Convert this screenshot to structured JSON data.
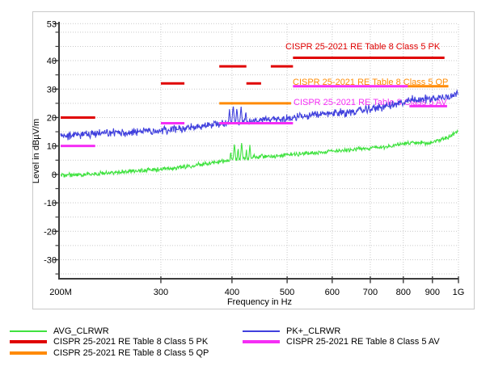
{
  "chart_data": {
    "type": "line",
    "title": "",
    "xlabel": "Frequency in Hz",
    "ylabel": "Level in dBµV/m",
    "x_scale": "log",
    "xlim_mhz": [
      200,
      1000
    ],
    "ylim": [
      -37,
      53
    ],
    "grid": "dotted",
    "x_ticks": [
      {
        "mhz": 200,
        "label": "200M"
      },
      {
        "mhz": 300,
        "label": "300"
      },
      {
        "mhz": 400,
        "label": "400"
      },
      {
        "mhz": 500,
        "label": "500"
      },
      {
        "mhz": 600,
        "label": "600"
      },
      {
        "mhz": 700,
        "label": "700"
      },
      {
        "mhz": 800,
        "label": "800"
      },
      {
        "mhz": 900,
        "label": "900"
      },
      {
        "mhz": 1000,
        "label": "1G"
      }
    ],
    "y_ticks": [
      53,
      40,
      30,
      20,
      10,
      0,
      -10,
      -20,
      -30
    ],
    "series": [
      {
        "name": "AVG_CLRWR",
        "color": "#3fe23f",
        "noise_db": 0.7,
        "anchors_mhz_db": [
          [
            200,
            -0.4
          ],
          [
            230,
            0.2
          ],
          [
            260,
            1.0
          ],
          [
            300,
            1.8
          ],
          [
            340,
            3.0
          ],
          [
            380,
            4.5
          ],
          [
            420,
            5.5
          ],
          [
            460,
            6.3
          ],
          [
            512,
            7.0
          ],
          [
            560,
            7.6
          ],
          [
            600,
            8.2
          ],
          [
            650,
            8.8
          ],
          [
            700,
            9.3
          ],
          [
            750,
            9.8
          ],
          [
            800,
            10.8
          ],
          [
            840,
            11.0
          ],
          [
            880,
            10.8
          ],
          [
            920,
            12.0
          ],
          [
            960,
            13.0
          ],
          [
            1000,
            15.3
          ]
        ],
        "spikes_mhz_db": [
          [
            398,
            8.5
          ],
          [
            404,
            11.0
          ],
          [
            410,
            9.5
          ],
          [
            416,
            11.3
          ],
          [
            424,
            9.0
          ],
          [
            430,
            10.4
          ],
          [
            438,
            7.8
          ],
          [
            452,
            8.0
          ],
          [
            860,
            12.2
          ]
        ]
      },
      {
        "name": "PK+_CLRWR",
        "color": "#4040dd",
        "noise_db": 1.4,
        "anchors_mhz_db": [
          [
            200,
            13.5
          ],
          [
            230,
            14.2
          ],
          [
            260,
            14.8
          ],
          [
            300,
            15.5
          ],
          [
            340,
            16.5
          ],
          [
            380,
            17.8
          ],
          [
            420,
            18.5
          ],
          [
            460,
            19.0
          ],
          [
            512,
            20.0
          ],
          [
            560,
            20.8
          ],
          [
            600,
            21.5
          ],
          [
            650,
            22.0
          ],
          [
            700,
            23.0
          ],
          [
            750,
            24.0
          ],
          [
            800,
            25.2
          ],
          [
            840,
            26.3
          ],
          [
            880,
            26.6
          ],
          [
            920,
            26.8
          ],
          [
            960,
            27.5
          ],
          [
            1000,
            28.5
          ]
        ],
        "spikes_mhz_db": [
          [
            396,
            23.0
          ],
          [
            402,
            24.5
          ],
          [
            408,
            23.5
          ],
          [
            415,
            24.0
          ],
          [
            423,
            22.5
          ],
          [
            830,
            28.0
          ]
        ]
      }
    ],
    "limits": [
      {
        "name": "CISPR 25-2021 RE Table 8 Class 5 PK",
        "color": "#e00000",
        "segments_mhz_db": [
          [
            200,
            230,
            20
          ],
          [
            300,
            330,
            32
          ],
          [
            380,
            424,
            38
          ],
          [
            424,
            450,
            32
          ],
          [
            468,
            512,
            38
          ],
          [
            512,
            945,
            41
          ]
        ]
      },
      {
        "name": "CISPR 25-2021 RE Table 8 Class 5 QP",
        "color": "#ff8a00",
        "segments_mhz_db": [
          [
            380,
            508,
            25
          ],
          [
            815,
            960,
            31
          ]
        ]
      },
      {
        "name": "CISPR 25-2021 RE Table 8 Class 5 AV",
        "color": "#f52ef5",
        "segments_mhz_db": [
          [
            200,
            230,
            10
          ],
          [
            300,
            330,
            18
          ],
          [
            380,
            512,
            18
          ],
          [
            512,
            815,
            31
          ],
          [
            820,
            955,
            24
          ]
        ]
      }
    ],
    "annotations": [
      {
        "text": "CISPR 25-2021 RE Table 8 Class 5 PK",
        "color": "#e00000",
        "x": 353,
        "y": 61
      },
      {
        "text": "CISPR 25-2021 RE Table 8 Class 5 QP",
        "color": "#ff8a00",
        "x": 362,
        "y": 105
      },
      {
        "text": "CISPR 25-2021 RE Table 8 Class 5 AV",
        "color": "#f52ef5",
        "x": 363,
        "y": 130
      }
    ],
    "legend_position": "bottom"
  },
  "legend": {
    "columns": [
      [
        {
          "label": "AVG_CLRWR",
          "color": "#3fe23f",
          "thick": false
        },
        {
          "label": "CISPR 25-2021 RE Table 8 Class 5 PK",
          "color": "#e00000",
          "thick": true
        },
        {
          "label": "CISPR 25-2021 RE Table 8 Class 5 QP",
          "color": "#ff8a00",
          "thick": true
        }
      ],
      [
        {
          "label": "PK+_CLRWR",
          "color": "#4040dd",
          "thick": false
        },
        {
          "label": "CISPR 25-2021 RE Table 8 Class 5 AV",
          "color": "#f52ef5",
          "thick": true
        }
      ]
    ]
  },
  "style": {
    "grid_color": "#c9c9c9",
    "axis_color": "#3c3c3c",
    "text_color": "#000000"
  }
}
